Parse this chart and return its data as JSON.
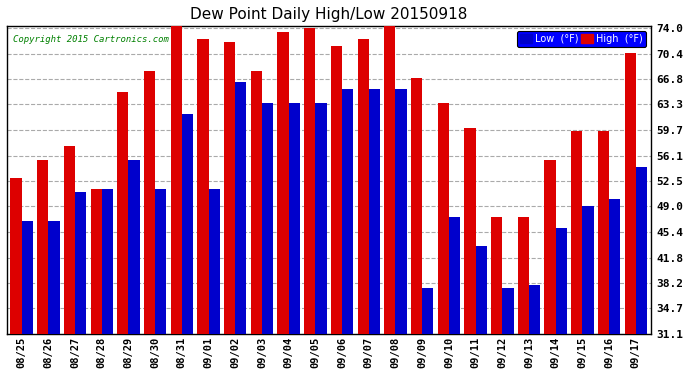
{
  "title": "Dew Point Daily High/Low 20150918",
  "copyright": "Copyright 2015 Cartronics.com",
  "background_color": "#ffffff",
  "plot_bg_color": "#ffffff",
  "grid_color": "#aaaaaa",
  "dates": [
    "08/25",
    "08/26",
    "08/27",
    "08/28",
    "08/29",
    "08/30",
    "08/31",
    "09/01",
    "09/02",
    "09/03",
    "09/04",
    "09/05",
    "09/06",
    "09/07",
    "09/08",
    "09/09",
    "09/10",
    "09/11",
    "09/12",
    "09/13",
    "09/14",
    "09/15",
    "09/16",
    "09/17"
  ],
  "low_values": [
    47.0,
    47.0,
    51.0,
    51.5,
    55.5,
    51.5,
    62.0,
    51.5,
    66.5,
    63.5,
    63.5,
    63.5,
    65.5,
    65.5,
    65.5,
    37.5,
    47.5,
    43.5,
    37.5,
    38.0,
    46.0,
    49.0,
    50.0,
    54.5
  ],
  "high_values": [
    53.0,
    55.5,
    57.5,
    51.5,
    65.0,
    68.0,
    74.5,
    72.5,
    72.0,
    68.0,
    73.5,
    74.0,
    71.5,
    72.5,
    74.5,
    67.0,
    63.5,
    60.0,
    47.5,
    47.5,
    55.5,
    59.5,
    59.5,
    70.5
  ],
  "low_color": "#0000cc",
  "high_color": "#dd0000",
  "ylim_min": 31.1,
  "ylim_max": 74.0,
  "yticks": [
    31.1,
    34.7,
    38.2,
    41.8,
    45.4,
    49.0,
    52.5,
    56.1,
    59.7,
    63.3,
    66.8,
    70.4,
    74.0
  ],
  "ytick_labels": [
    "31.1",
    "34.7",
    "38.2",
    "41.8",
    "45.4",
    "49.0",
    "52.5",
    "56.1",
    "59.7",
    "63.3",
    "66.8",
    "70.4",
    "74.0"
  ],
  "bar_width": 0.42
}
